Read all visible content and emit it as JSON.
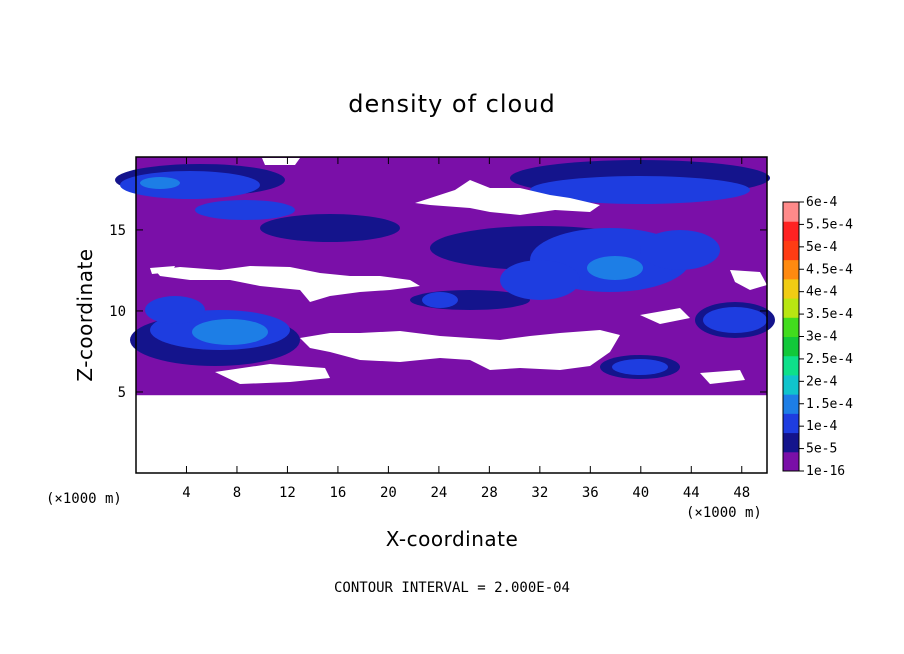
{
  "chart_data": {
    "type": "heatmap",
    "title": "density of cloud",
    "xlabel": "X-coordinate",
    "ylabel": "Z-coordinate",
    "x_unit": "(×1000 m)",
    "z_unit": "(×1000 m)",
    "xlim": [
      0,
      50
    ],
    "ylim": [
      0,
      19.5
    ],
    "xticks": [
      4,
      8,
      12,
      16,
      20,
      24,
      28,
      32,
      36,
      40,
      44,
      48
    ],
    "yticks": [
      5,
      10,
      15
    ],
    "grid": false,
    "contour_interval_text": "CONTOUR INTERVAL = 2.000E-04",
    "colorbar": {
      "labels": [
        "1e-16",
        "5e-5",
        "1e-4",
        "1.5e-4",
        "2e-4",
        "2.5e-4",
        "3e-4",
        "3.5e-4",
        "4e-4",
        "4.5e-4",
        "5e-4",
        "5.5e-4",
        "6e-4"
      ],
      "colors": [
        "#7a0fa8",
        "#14148c",
        "#1e3de0",
        "#1d7ee6",
        "#10c4cc",
        "#0ee08a",
        "#12c83a",
        "#42dc1e",
        "#b8e612",
        "#f0cc14",
        "#ff8a10",
        "#ff3c14",
        "#ff2222",
        "#ff8a8a"
      ]
    },
    "regions": [
      {
        "kind": "cloud-base",
        "value": "1e-16",
        "x": [
          0,
          50
        ],
        "z": [
          4.8,
          19.5
        ]
      },
      {
        "kind": "core",
        "value": "5e-5 to 1.5e-4",
        "x_center": 3,
        "z_center": 17.5
      },
      {
        "kind": "core",
        "value": "5e-5 to 1.5e-4",
        "x_center": 36,
        "z_center": 15
      },
      {
        "kind": "core",
        "value": "1e-4 to 1.5e-4",
        "x_center": 7,
        "z_center": 9.3
      },
      {
        "kind": "core",
        "value": "5e-5 to 1e-4",
        "x_center": 46,
        "z_center": 10
      }
    ]
  }
}
